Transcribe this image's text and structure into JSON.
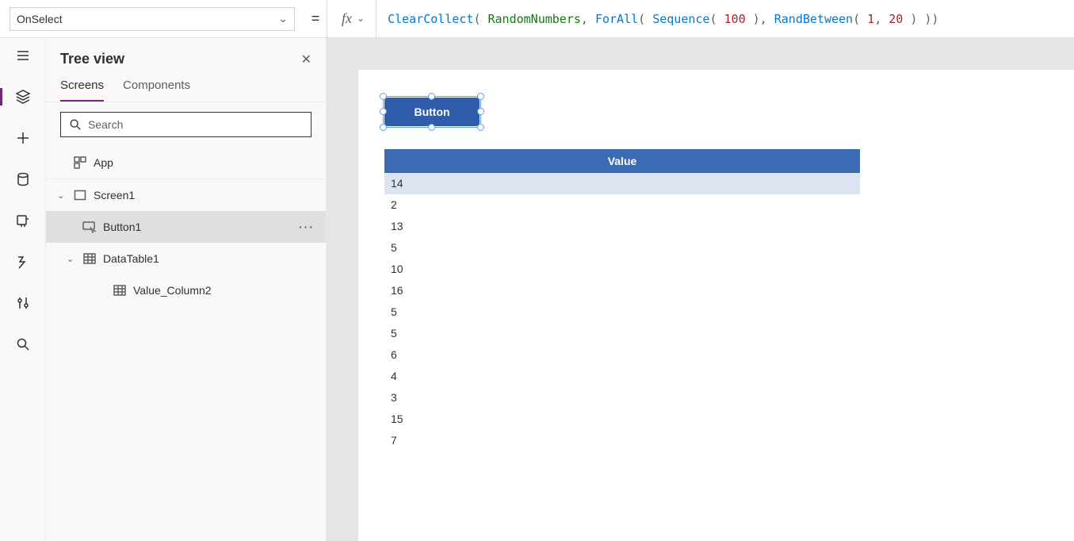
{
  "property_dropdown": {
    "value": "OnSelect"
  },
  "formula": {
    "tokens": [
      {
        "t": "fn",
        "v": "ClearCollect"
      },
      {
        "t": "punct",
        "v": "( "
      },
      {
        "t": "ident",
        "v": "RandomNumbers"
      },
      {
        "t": "punct",
        "v": ", "
      },
      {
        "t": "fn",
        "v": "ForAll"
      },
      {
        "t": "punct",
        "v": "( "
      },
      {
        "t": "fn",
        "v": "Sequence"
      },
      {
        "t": "punct",
        "v": "( "
      },
      {
        "t": "num",
        "v": "100"
      },
      {
        "t": "punct",
        "v": " ), "
      },
      {
        "t": "fn",
        "v": "RandBetween"
      },
      {
        "t": "punct",
        "v": "( "
      },
      {
        "t": "num",
        "v": "1"
      },
      {
        "t": "punct",
        "v": ", "
      },
      {
        "t": "num",
        "v": "20"
      },
      {
        "t": "punct",
        "v": " ) ))"
      }
    ]
  },
  "panel": {
    "title": "Tree view",
    "tabs": {
      "screens": "Screens",
      "components": "Components"
    },
    "search_placeholder": "Search"
  },
  "tree": {
    "app": "App",
    "screen": "Screen1",
    "button": "Button1",
    "datatable": "DataTable1",
    "column": "Value_Column2",
    "more": "···"
  },
  "canvas": {
    "button_label": "Button",
    "table_header": "Value",
    "table_rows": [
      "14",
      "2",
      "13",
      "5",
      "10",
      "16",
      "5",
      "5",
      "6",
      "4",
      "3",
      "15",
      "7"
    ]
  },
  "colors": {
    "accent": "#742774",
    "button_bg": "#2f5cab",
    "table_head": "#3b6cb3",
    "row_sel": "#dce4f2"
  }
}
